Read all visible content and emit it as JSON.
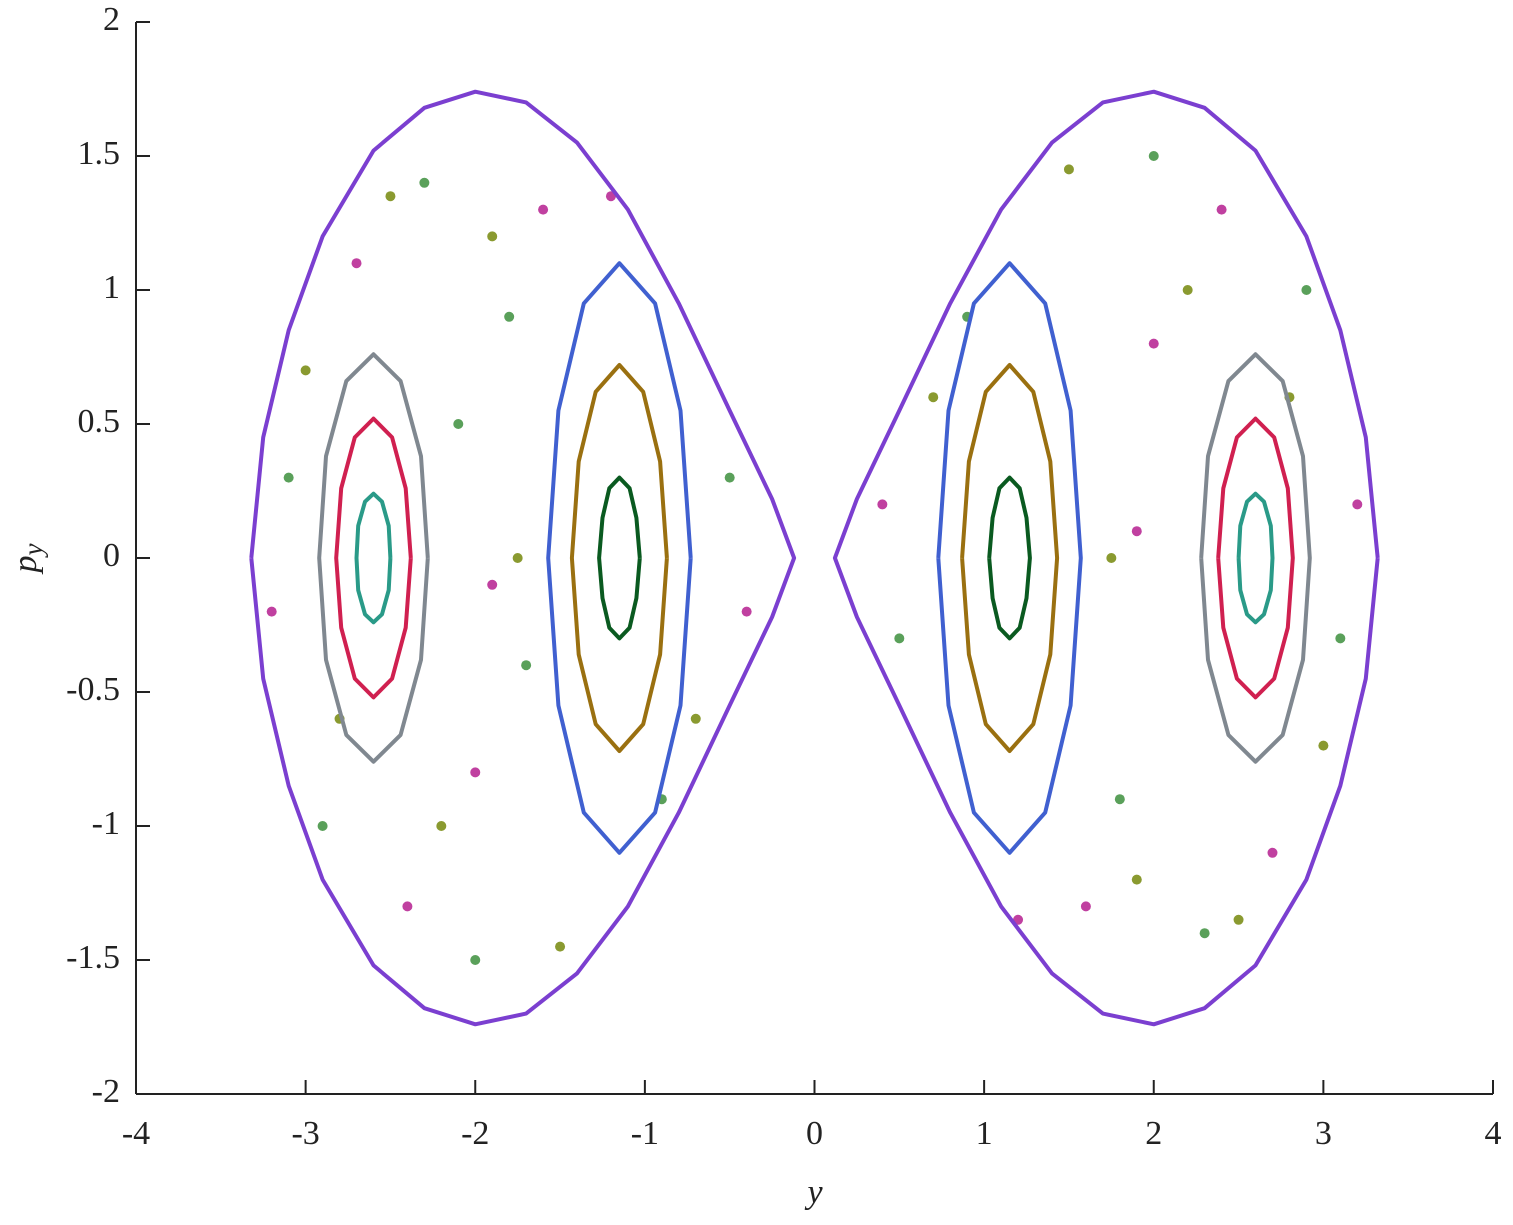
{
  "chart_data": {
    "type": "scatter",
    "xlabel": "y",
    "ylabel": "p",
    "ylabel_sub": "y",
    "xlim": [
      -4,
      4
    ],
    "ylim": [
      -2,
      2
    ],
    "xticks": [
      -4,
      -3,
      -2,
      -1,
      0,
      1,
      2,
      3,
      4
    ],
    "yticks": [
      -2,
      -1.5,
      -1,
      -0.5,
      0,
      0.5,
      1,
      1.5,
      2
    ],
    "series": [
      {
        "color": "#5aa05a",
        "mode": "markers",
        "x": [
          -3.1,
          -2.9,
          -2.3,
          -2.0,
          -1.8,
          -1.7,
          -0.5,
          -0.9,
          -2.1,
          3.1,
          2.9,
          2.3,
          2.0,
          1.8,
          0.5,
          0.9
        ],
        "values": [
          0.3,
          -1.0,
          1.4,
          -1.5,
          0.9,
          -0.4,
          0.3,
          -0.9,
          0.5,
          -0.3,
          1.0,
          -1.4,
          1.5,
          -0.9,
          -0.3,
          0.9
        ]
      },
      {
        "color": "#c040a0",
        "mode": "markers",
        "x": [
          -3.2,
          -2.7,
          -2.4,
          -1.6,
          -1.9,
          -0.4,
          -1.2,
          -2.0,
          3.2,
          2.7,
          2.4,
          1.6,
          1.9,
          0.4,
          1.2,
          2.0
        ],
        "values": [
          -0.2,
          1.1,
          -1.3,
          1.3,
          -0.1,
          -0.2,
          1.35,
          -0.8,
          0.2,
          -1.1,
          1.3,
          -1.3,
          0.1,
          0.2,
          -1.35,
          0.8
        ]
      },
      {
        "color": "#8a9a30",
        "mode": "markers",
        "x": [
          -3.0,
          -2.8,
          -2.2,
          -1.9,
          -1.75,
          -0.7,
          -1.5,
          -2.5,
          3.0,
          2.8,
          2.2,
          1.9,
          1.75,
          0.7,
          1.5,
          2.5
        ],
        "values": [
          0.7,
          -0.6,
          -1.0,
          1.2,
          0.0,
          -0.6,
          -1.45,
          1.35,
          -0.7,
          0.6,
          1.0,
          -1.2,
          0.0,
          0.6,
          1.45,
          -1.35
        ]
      },
      {
        "color": "#7b3fd0",
        "mode": "line",
        "x": [
          -3.32,
          -3.25,
          -3.1,
          -2.9,
          -2.6,
          -2.3,
          -2.0,
          -1.7,
          -1.4,
          -1.1,
          -0.8,
          -0.5,
          -0.25,
          -0.12,
          -0.25,
          -0.5,
          -0.8,
          -1.1,
          -1.4,
          -1.7,
          -2.0,
          -2.3,
          -2.6,
          -2.9,
          -3.1,
          -3.25,
          -3.32
        ],
        "values": [
          0,
          0.45,
          0.85,
          1.2,
          1.52,
          1.68,
          1.74,
          1.7,
          1.55,
          1.3,
          0.95,
          0.55,
          0.22,
          0,
          -0.22,
          -0.55,
          -0.95,
          -1.3,
          -1.55,
          -1.7,
          -1.74,
          -1.68,
          -1.52,
          -1.2,
          -0.85,
          -0.45,
          0
        ]
      },
      {
        "color": "#7b3fd0",
        "mode": "line",
        "x": [
          3.32,
          3.25,
          3.1,
          2.9,
          2.6,
          2.3,
          2.0,
          1.7,
          1.4,
          1.1,
          0.8,
          0.5,
          0.25,
          0.12,
          0.25,
          0.5,
          0.8,
          1.1,
          1.4,
          1.7,
          2.0,
          2.3,
          2.6,
          2.9,
          3.1,
          3.25,
          3.32
        ],
        "values": [
          0,
          0.45,
          0.85,
          1.2,
          1.52,
          1.68,
          1.74,
          1.7,
          1.55,
          1.3,
          0.95,
          0.55,
          0.22,
          0,
          -0.22,
          -0.55,
          -0.95,
          -1.3,
          -1.55,
          -1.7,
          -1.74,
          -1.68,
          -1.52,
          -1.2,
          -0.85,
          -0.45,
          0
        ]
      },
      {
        "color": "#808890",
        "mode": "line",
        "x": [
          -2.28,
          -2.32,
          -2.44,
          -2.6,
          -2.76,
          -2.88,
          -2.92,
          -2.88,
          -2.76,
          -2.6,
          -2.44,
          -2.32,
          -2.28
        ],
        "values": [
          0,
          0.38,
          0.66,
          0.76,
          0.66,
          0.38,
          0,
          -0.38,
          -0.66,
          -0.76,
          -0.66,
          -0.38,
          0
        ]
      },
      {
        "color": "#d02050",
        "mode": "line",
        "x": [
          -2.38,
          -2.41,
          -2.49,
          -2.6,
          -2.71,
          -2.79,
          -2.82,
          -2.79,
          -2.71,
          -2.6,
          -2.49,
          -2.41,
          -2.38
        ],
        "values": [
          0,
          0.26,
          0.45,
          0.52,
          0.45,
          0.26,
          0,
          -0.26,
          -0.45,
          -0.52,
          -0.45,
          -0.26,
          0
        ]
      },
      {
        "color": "#2a9a88",
        "mode": "line",
        "x": [
          -2.5,
          -2.51,
          -2.55,
          -2.6,
          -2.65,
          -2.69,
          -2.7,
          -2.69,
          -2.65,
          -2.6,
          -2.55,
          -2.51,
          -2.5
        ],
        "values": [
          0,
          0.12,
          0.21,
          0.24,
          0.21,
          0.12,
          0,
          -0.12,
          -0.21,
          -0.24,
          -0.21,
          -0.12,
          0
        ]
      },
      {
        "color": "#808890",
        "mode": "line",
        "x": [
          2.28,
          2.32,
          2.44,
          2.6,
          2.76,
          2.88,
          2.92,
          2.88,
          2.76,
          2.6,
          2.44,
          2.32,
          2.28
        ],
        "values": [
          0,
          0.38,
          0.66,
          0.76,
          0.66,
          0.38,
          0,
          -0.38,
          -0.66,
          -0.76,
          -0.66,
          -0.38,
          0
        ]
      },
      {
        "color": "#d02050",
        "mode": "line",
        "x": [
          2.38,
          2.41,
          2.49,
          2.6,
          2.71,
          2.79,
          2.82,
          2.79,
          2.71,
          2.6,
          2.49,
          2.41,
          2.38
        ],
        "values": [
          0,
          0.26,
          0.45,
          0.52,
          0.45,
          0.26,
          0,
          -0.26,
          -0.45,
          -0.52,
          -0.45,
          -0.26,
          0
        ]
      },
      {
        "color": "#2a9a88",
        "mode": "line",
        "x": [
          2.5,
          2.51,
          2.55,
          2.6,
          2.65,
          2.69,
          2.7,
          2.69,
          2.65,
          2.6,
          2.55,
          2.51,
          2.5
        ],
        "values": [
          0,
          0.12,
          0.21,
          0.24,
          0.21,
          0.12,
          0,
          -0.12,
          -0.21,
          -0.24,
          -0.21,
          -0.12,
          0
        ]
      },
      {
        "color": "#4060d0",
        "mode": "line",
        "x": [
          -0.73,
          -0.79,
          -0.94,
          -1.15,
          -1.36,
          -1.51,
          -1.57,
          -1.51,
          -1.36,
          -1.15,
          -0.94,
          -0.79,
          -0.73
        ],
        "values": [
          0,
          0.55,
          0.95,
          1.1,
          0.95,
          0.55,
          0,
          -0.55,
          -0.95,
          -1.1,
          -0.95,
          -0.55,
          0
        ]
      },
      {
        "color": "#9a7010",
        "mode": "line",
        "x": [
          -0.87,
          -0.91,
          -1.01,
          -1.15,
          -1.29,
          -1.39,
          -1.43,
          -1.39,
          -1.29,
          -1.15,
          -1.01,
          -0.91,
          -0.87
        ],
        "values": [
          0,
          0.36,
          0.62,
          0.72,
          0.62,
          0.36,
          0,
          -0.36,
          -0.62,
          -0.72,
          -0.62,
          -0.36,
          0
        ]
      },
      {
        "color": "#0a5a20",
        "mode": "line",
        "x": [
          -1.03,
          -1.05,
          -1.09,
          -1.15,
          -1.21,
          -1.25,
          -1.27,
          -1.25,
          -1.21,
          -1.15,
          -1.09,
          -1.05,
          -1.03
        ],
        "values": [
          0,
          0.15,
          0.26,
          0.3,
          0.26,
          0.15,
          0,
          -0.15,
          -0.26,
          -0.3,
          -0.26,
          -0.15,
          0
        ]
      },
      {
        "color": "#4060d0",
        "mode": "line",
        "x": [
          0.73,
          0.79,
          0.94,
          1.15,
          1.36,
          1.51,
          1.57,
          1.51,
          1.36,
          1.15,
          0.94,
          0.79,
          0.73
        ],
        "values": [
          0,
          0.55,
          0.95,
          1.1,
          0.95,
          0.55,
          0,
          -0.55,
          -0.95,
          -1.1,
          -0.95,
          -0.55,
          0
        ]
      },
      {
        "color": "#9a7010",
        "mode": "line",
        "x": [
          0.87,
          0.91,
          1.01,
          1.15,
          1.29,
          1.39,
          1.43,
          1.39,
          1.29,
          1.15,
          1.01,
          0.91,
          0.87
        ],
        "values": [
          0,
          0.36,
          0.62,
          0.72,
          0.62,
          0.36,
          0,
          -0.36,
          -0.62,
          -0.72,
          -0.62,
          -0.36,
          0
        ]
      },
      {
        "color": "#0a5a20",
        "mode": "line",
        "x": [
          1.03,
          1.05,
          1.09,
          1.15,
          1.21,
          1.25,
          1.27,
          1.25,
          1.21,
          1.15,
          1.09,
          1.05,
          1.03
        ],
        "values": [
          0,
          0.15,
          0.26,
          0.3,
          0.26,
          0.15,
          0,
          -0.15,
          -0.26,
          -0.3,
          -0.26,
          -0.15,
          0
        ]
      }
    ]
  }
}
